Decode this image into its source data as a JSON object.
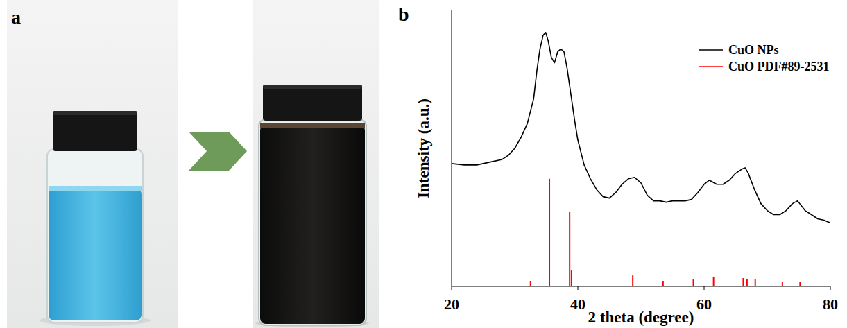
{
  "panel_labels": [
    "a",
    "b"
  ],
  "chart_data": {
    "type": "line",
    "x_label": "2 theta (degree)",
    "y_label": "Intensity (a.u.)",
    "xlim": [
      20,
      80
    ],
    "xticks": [
      20,
      40,
      60,
      80
    ],
    "ylim": [
      0,
      100
    ],
    "tick_labels": "x",
    "legend": "upper right",
    "series": [
      {
        "name": "CuO NPs",
        "color": "#000000",
        "type": "line",
        "x": [
          20,
          22,
          24,
          26,
          28,
          29,
          30,
          31,
          32,
          33,
          33.5,
          34,
          34.5,
          34.9,
          35.3,
          35.8,
          36.3,
          36.8,
          37.3,
          37.8,
          38.3,
          39,
          39.5,
          40,
          41,
          42,
          43,
          44,
          45,
          46,
          47,
          48,
          49,
          50,
          51,
          52,
          53,
          54,
          55,
          56,
          57,
          58,
          59,
          60,
          60.8,
          62,
          63,
          64,
          65,
          66,
          66.5,
          67,
          68,
          69,
          70,
          71,
          72,
          73,
          74,
          74.8,
          76,
          77,
          78,
          79,
          80
        ],
        "values": [
          44.5,
          44,
          44,
          45,
          46,
          47.5,
          50,
          54,
          59,
          68,
          78,
          86,
          91,
          92,
          89,
          83,
          81,
          85,
          86,
          85,
          79,
          68,
          60,
          53,
          44,
          39,
          35,
          32.5,
          32,
          34,
          37,
          39,
          39.5,
          37.5,
          33,
          31,
          31,
          30.5,
          31,
          31,
          31,
          31.5,
          34,
          37,
          38.5,
          37,
          37,
          38.5,
          41,
          42.5,
          43,
          41,
          35,
          30,
          27.5,
          26,
          26,
          27.5,
          30,
          31,
          27.5,
          26,
          24.5,
          24,
          23
        ]
      },
      {
        "name": "CuO PDF#89-2531",
        "color": "#ff0000",
        "type": "stem",
        "x": [
          32.5,
          35.5,
          38.7,
          39.0,
          48.7,
          53.5,
          58.3,
          61.5,
          66.2,
          66.8,
          68.1,
          72.4,
          75.2
        ],
        "values": [
          2,
          39,
          27,
          6,
          4,
          2,
          2.5,
          3.5,
          3,
          2.5,
          2.5,
          1.5,
          1.5
        ]
      }
    ]
  }
}
